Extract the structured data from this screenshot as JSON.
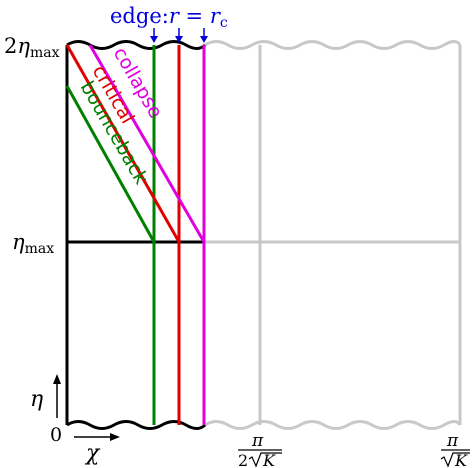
{
  "axes": {
    "y_name": "η",
    "x_name": "χ",
    "y_ticks": {
      "zero": "0",
      "eta_max_sym": "η",
      "eta_max_sub": "max",
      "two_eta_coef": "2",
      "two_eta_sym": "η",
      "two_eta_sub": "max"
    },
    "x_ticks": {
      "half_num": "π",
      "half_den_coef": "2",
      "half_den_var": "K",
      "full_num": "π",
      "full_den_var": "K"
    }
  },
  "edge_label": {
    "prefix": "edge:",
    "r": "r",
    "equals": " = ",
    "r_c": "r",
    "r_c_sub": "c"
  },
  "trajectories": [
    {
      "key": "collapse",
      "label": "collapse",
      "color": "#e000e0"
    },
    {
      "key": "critical",
      "label": "critical",
      "color": "#e00000"
    },
    {
      "key": "bounceback",
      "label": "bounceback",
      "color": "#008000"
    }
  ],
  "colors": {
    "frame": "#000000",
    "ghost": "#c8c8c8",
    "annotation": "#0000dd"
  }
}
